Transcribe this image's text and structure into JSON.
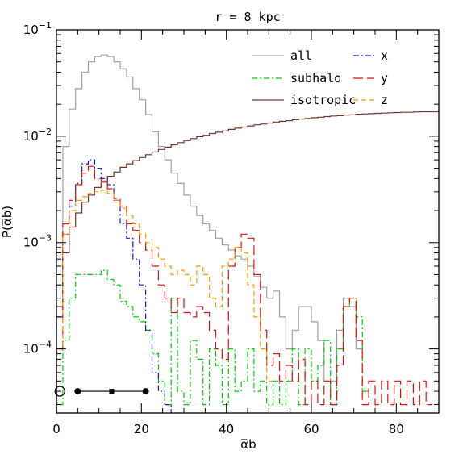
{
  "chart_data": {
    "type": "line",
    "title": "r = 8 kpc",
    "xlabel": "α̅b",
    "ylabel": "P(α̅b)",
    "xscale": "linear",
    "yscale": "log",
    "xlim": [
      0,
      90
    ],
    "ylim": [
      2.5e-05,
      0.1
    ],
    "grid": false,
    "x_ticks": [
      0,
      20,
      40,
      60,
      80
    ],
    "x_tick_labels": [
      "0",
      "20",
      "40",
      "60",
      "80"
    ],
    "y_ticks": [
      0.0001,
      0.001,
      0.01,
      0.1
    ],
    "y_tick_labels": [
      {
        "base": "10",
        "exp": "−4"
      },
      {
        "base": "10",
        "exp": "−3"
      },
      {
        "base": "10",
        "exp": "−2"
      },
      {
        "base": "10",
        "exp": "−1"
      }
    ],
    "legend_position": "top-right",
    "legend_columns": 2,
    "bin_width": 1.5,
    "series": [
      {
        "name": "all",
        "color": "#a0a0a0",
        "dash": "",
        "style": "step",
        "edges": [
          0,
          1.5,
          3,
          4.5,
          6,
          7.5,
          9,
          10.5,
          12,
          13.5,
          15,
          16.5,
          18,
          19.5,
          21,
          22.5,
          24,
          25.5,
          27,
          28.5,
          30,
          31.5,
          33,
          34.5,
          36,
          37.5,
          39,
          40.5,
          42,
          43.5,
          45,
          46.5,
          48,
          49.5,
          51,
          52.5,
          54,
          55.5,
          57,
          58.5,
          60,
          61.5,
          63,
          64.5,
          66,
          67.5,
          69,
          70.5,
          72
        ],
        "values": [
          0.0004,
          0.008,
          0.018,
          0.028,
          0.04,
          0.05,
          0.056,
          0.058,
          0.056,
          0.05,
          0.043,
          0.036,
          0.028,
          0.022,
          0.016,
          0.011,
          0.008,
          0.006,
          0.0045,
          0.0036,
          0.0028,
          0.0022,
          0.0018,
          0.0015,
          0.0013,
          0.0011,
          0.00095,
          0.00085,
          0.00075,
          0.0007,
          0.0006,
          0.00048,
          0.00038,
          0.0003,
          0.00035,
          0.0002,
          0.0001,
          0.00015,
          0.00025,
          0.00025,
          0.00018,
          0.00012,
          5e-05,
          5e-05,
          0.00015,
          0.0003,
          0.00025,
          0.0001
        ]
      },
      {
        "name": "subhalo",
        "color": "#00cc00",
        "dash": "7,3,2,3",
        "style": "step",
        "edges": [
          0,
          1.5,
          3,
          4.5,
          6,
          7.5,
          9,
          10.5,
          12,
          13.5,
          15,
          16.5,
          18,
          19.5,
          21,
          22.5,
          24,
          25.5,
          27,
          28.5,
          30,
          31.5,
          33,
          34.5,
          36,
          37.5,
          39,
          40.5,
          42,
          43.5,
          45,
          46.5,
          48,
          49.5,
          51,
          52.5,
          54,
          55.5,
          57,
          58.5,
          60,
          61.5,
          63,
          64.5,
          66,
          67.5,
          69,
          70.5,
          72,
          73.5
        ],
        "values": [
          3e-05,
          0.00012,
          0.0003,
          0.0005,
          0.0005,
          0.0005,
          0.0005,
          0.00055,
          0.00045,
          0.0004,
          0.00028,
          0.00025,
          0.0002,
          0.00018,
          0.00015,
          9e-05,
          5e-05,
          3e-05,
          0.0003,
          4e-05,
          3e-05,
          0.00012,
          8e-05,
          3e-05,
          0.0001,
          7e-05,
          3e-05,
          0.0001,
          4e-05,
          5e-05,
          0.0001,
          4e-05,
          5e-05,
          3e-05,
          5e-05,
          3e-05,
          5e-05,
          0.0001,
          3e-05,
          0.0001,
          5e-05,
          7e-05,
          0.00012,
          3e-05,
          0.0001,
          0.00025,
          0.0003,
          0.0002,
          4e-05
        ]
      },
      {
        "name": "isotropic",
        "color": "#6e3a2f",
        "dash": "",
        "style": "step",
        "edges": [
          0,
          1.5,
          3,
          4.5,
          6,
          7.5,
          9,
          10.5,
          12,
          13.5,
          15,
          16.5,
          18,
          19.5,
          21,
          22.5,
          24,
          25.5,
          27,
          28.5,
          30,
          31.5,
          33,
          34.5,
          36,
          37.5,
          39,
          40.5,
          42,
          43.5,
          45,
          46.5,
          48,
          49.5,
          51,
          52.5,
          54,
          55.5,
          57,
          58.5,
          60,
          61.5,
          63,
          64.5,
          66,
          67.5,
          69,
          70.5,
          72,
          73.5,
          75,
          76.5,
          78,
          79.5,
          81,
          82.5,
          84,
          85.5,
          87,
          88.5,
          90
        ],
        "values": [
          0.00025,
          0.0008,
          0.0014,
          0.0019,
          0.0024,
          0.0028,
          0.0033,
          0.0037,
          0.0042,
          0.0046,
          0.0051,
          0.0055,
          0.0059,
          0.0063,
          0.0067,
          0.0071,
          0.0075,
          0.0079,
          0.0083,
          0.0087,
          0.0091,
          0.0095,
          0.0099,
          0.0102,
          0.0106,
          0.0109,
          0.0112,
          0.0116,
          0.0119,
          0.0122,
          0.0125,
          0.0128,
          0.013,
          0.0133,
          0.0136,
          0.0138,
          0.014,
          0.0143,
          0.0145,
          0.0147,
          0.0149,
          0.0151,
          0.0153,
          0.0155,
          0.0156,
          0.0158,
          0.0159,
          0.0161,
          0.0162,
          0.0163,
          0.0164,
          0.0165,
          0.0166,
          0.0167,
          0.0168,
          0.0168,
          0.0169,
          0.017,
          0.017,
          0.017
        ]
      },
      {
        "name": "x",
        "color": "#1a1acc",
        "dash": "7,3,2,3",
        "style": "step",
        "edges": [
          0,
          1.5,
          3,
          4.5,
          6,
          7.5,
          9,
          10.5,
          12,
          13.5,
          15,
          16.5,
          18,
          19.5,
          21,
          22.5,
          24,
          25.5,
          27,
          28.5
        ],
        "values": [
          0.0002,
          0.0012,
          0.0022,
          0.0036,
          0.0055,
          0.006,
          0.005,
          0.004,
          0.0035,
          0.0025,
          0.0015,
          0.0011,
          0.0007,
          0.0004,
          0.00015,
          6e-05,
          4e-05,
          3e-05,
          2e-05
        ]
      },
      {
        "name": "y",
        "color": "#e01010",
        "dash": "12,5",
        "style": "step",
        "edges": [
          0,
          1.5,
          3,
          4.5,
          6,
          7.5,
          9,
          10.5,
          12,
          13.5,
          15,
          16.5,
          18,
          19.5,
          21,
          22.5,
          24,
          25.5,
          27,
          28.5,
          30,
          31.5,
          33,
          34.5,
          36,
          37.5,
          39,
          40.5,
          42,
          43.5,
          45,
          46.5,
          48,
          49.5,
          51,
          52.5,
          54,
          55.5,
          57,
          58.5,
          60,
          61.5,
          63,
          64.5,
          66,
          67.5,
          69,
          70.5,
          72,
          73.5,
          75,
          76.5,
          78,
          79.5,
          81,
          82.5,
          84,
          85.5,
          87,
          88.5
        ],
        "values": [
          0.0001,
          0.0015,
          0.0025,
          0.0035,
          0.0045,
          0.0052,
          0.004,
          0.0038,
          0.0032,
          0.0026,
          0.0022,
          0.0015,
          0.0013,
          0.001,
          0.00085,
          0.0006,
          0.0004,
          0.0003,
          0.00022,
          0.0003,
          0.00022,
          0.0002,
          0.00025,
          0.00022,
          0.00015,
          0.0001,
          8e-05,
          0.0006,
          0.0009,
          0.0012,
          0.0011,
          0.0005,
          0.00015,
          7e-05,
          9e-05,
          5e-05,
          7e-05,
          5e-05,
          8e-05,
          3e-05,
          5e-05,
          3e-05,
          5e-05,
          3e-05,
          7e-05,
          0.00025,
          0.0003,
          0.00012,
          3e-05,
          5e-05,
          3e-05,
          5e-05,
          3e-05,
          5e-05,
          3e-05,
          5e-05,
          3e-05,
          5e-05,
          3e-05
        ]
      },
      {
        "name": "z",
        "color": "#ff9900",
        "dash": "6,4",
        "style": "step",
        "edges": [
          0,
          1.5,
          3,
          4.5,
          6,
          7.5,
          9,
          10.5,
          12,
          13.5,
          15,
          16.5,
          18,
          19.5,
          21,
          22.5,
          24,
          25.5,
          27,
          28.5,
          30,
          31.5,
          33,
          34.5,
          36,
          37.5,
          39,
          40.5,
          42,
          43.5,
          45,
          46.5,
          48,
          49.5,
          51
        ],
        "values": [
          0.0001,
          0.0012,
          0.002,
          0.0025,
          0.0027,
          0.0029,
          0.003,
          0.0031,
          0.0029,
          0.0025,
          0.0021,
          0.0018,
          0.0015,
          0.0012,
          0.001,
          0.0009,
          0.0007,
          0.0006,
          0.0005,
          0.00055,
          0.0005,
          0.0004,
          0.0006,
          0.0005,
          0.0003,
          0.00025,
          0.0006,
          0.0007,
          0.0009,
          0.0008,
          0.0004,
          0.0002,
          0.0001,
          5e-05
        ]
      }
    ],
    "marker_row": {
      "y": 4e-05,
      "open_circle": {
        "x": 0.8
      },
      "line": {
        "x0": 5,
        "x1": 21
      },
      "filled_circles": [
        5,
        21
      ],
      "square": 13
    }
  }
}
